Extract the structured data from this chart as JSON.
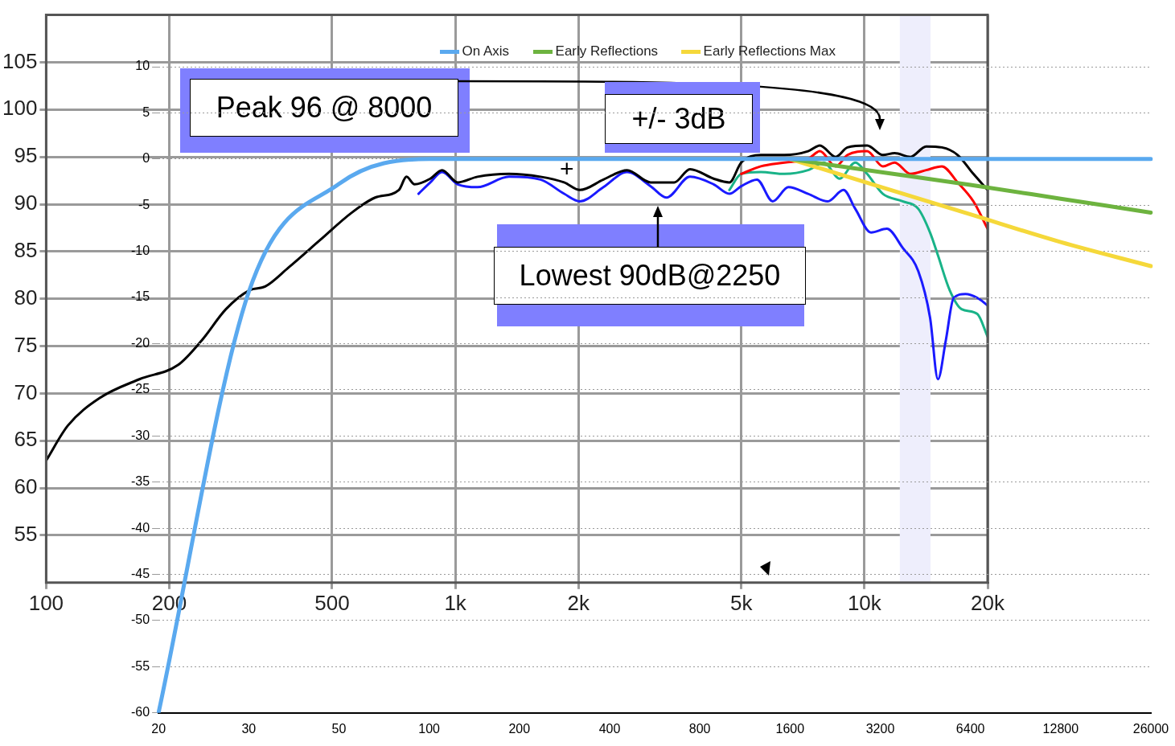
{
  "chart_data": [
    {
      "type": "line",
      "xlim": [
        100,
        20000
      ],
      "xticks": [
        100,
        200,
        500,
        {
          "value": 1000,
          "label": "1k"
        },
        {
          "value": 2000,
          "label": "2k"
        },
        {
          "value": 5000,
          "label": "5k"
        },
        {
          "value": 10000,
          "label": "10k"
        },
        {
          "value": 20000,
          "label": "20k"
        }
      ],
      "ylim": [
        50,
        110
      ],
      "yticks": [
        55,
        60,
        65,
        70,
        75,
        80,
        85,
        90,
        95,
        100,
        105
      ],
      "log": "x",
      "grid": true,
      "marker": "none",
      "bands": [
        {
          "axis": "x",
          "from": 12200,
          "to": 14500,
          "color": "#eeeefc"
        }
      ],
      "annotations": [
        "Peak 96 @ 8000",
        "Lowest 90dB@2250",
        "+/- 3dB",
        "+"
      ],
      "series": [
        {
          "color": "#000000",
          "x": [
            100,
            113,
            135,
            169,
            210,
            240,
            275,
            314,
            343,
            391,
            467,
            558,
            637,
            728,
            760,
            795,
            869,
            928,
            1014,
            1133,
            1353,
            1615,
            1845,
            2016,
            2302,
            2629,
            3002,
            3429,
            3747,
            4279,
            4676,
            4998,
            5583,
            6376,
            7281,
            7783,
            8504,
            9088,
            10150,
            11092,
            11855,
            12955,
            14152,
            15463,
            16897,
            18463,
            20000
          ],
          "values": [
            62.9,
            66.6,
            69.5,
            71.5,
            73.0,
            75.6,
            78.9,
            80.9,
            81.3,
            83.3,
            86.2,
            89.1,
            90.7,
            91.5,
            92.9,
            92.1,
            92.7,
            93.6,
            92.3,
            92.9,
            93.2,
            92.9,
            92.3,
            91.5,
            92.6,
            93.6,
            92.3,
            92.3,
            93.7,
            92.7,
            92.3,
            94.4,
            95.2,
            95.2,
            95.6,
            96.2,
            95.0,
            96.0,
            96.2,
            95.2,
            95.4,
            95.0,
            96.1,
            96.0,
            95.2,
            93.2,
            91.5
          ]
        },
        {
          "color": "#ff0000",
          "x": [
            4998,
            5583,
            6376,
            7281,
            7783,
            8504,
            9088,
            10150,
            11092,
            11855,
            12955,
            14152,
            15463,
            16897,
            18463,
            20000
          ],
          "values": [
            93.2,
            94.0,
            94.4,
            94.8,
            95.6,
            94.0,
            95.2,
            95.6,
            94.0,
            94.4,
            93.2,
            93.6,
            94.0,
            92.3,
            90.3,
            87.4
          ]
        },
        {
          "color": "#1a1aff",
          "x": [
            813,
            869,
            928,
            1014,
            1133,
            1353,
            1615,
            1845,
            2016,
            2302,
            2629,
            3002,
            3281,
            3747,
            4279,
            4676,
            4998,
            5461,
            5967,
            6521,
            7281,
            8134,
            8886,
            9500,
            10380,
            11342,
            12395,
            13543,
            14468,
            15122,
            15808,
            16523,
            17660,
            18873,
            20000
          ],
          "values": [
            91.1,
            92.3,
            93.4,
            92.1,
            91.8,
            92.9,
            92.6,
            91.1,
            90.3,
            91.8,
            93.4,
            91.9,
            90.7,
            92.9,
            92.1,
            91.1,
            91.9,
            92.6,
            90.3,
            91.8,
            91.1,
            90.3,
            91.5,
            89.5,
            87.0,
            87.4,
            85.4,
            82.9,
            78.0,
            71.5,
            75.6,
            80.1,
            80.5,
            80.1,
            79.3
          ]
        },
        {
          "color": "#19b388",
          "x": [
            4676,
            4998,
            5583,
            6376,
            7281,
            7956,
            8695,
            9500,
            10150,
            11092,
            12395,
            13543,
            14468,
            15122,
            16159,
            17277,
            18873,
            20000
          ],
          "values": [
            91.5,
            93.2,
            93.4,
            93.2,
            93.6,
            94.4,
            92.7,
            94.4,
            93.2,
            91.1,
            90.3,
            89.5,
            87.0,
            84.6,
            80.9,
            78.9,
            78.4,
            76.0
          ]
        }
      ]
    },
    {
      "type": "line",
      "categories": [
        "20",
        "30",
        "50",
        "100",
        "200",
        "400",
        "800",
        "1600",
        "3200",
        "6400",
        "12800",
        "26000"
      ],
      "ylim": [
        -60,
        10
      ],
      "yticks": [
        -60,
        -55,
        -50,
        -45,
        -40,
        -35,
        -30,
        -25,
        -20,
        -15,
        -10,
        -5,
        0,
        5,
        10
      ],
      "grid": "y",
      "legend": "top",
      "marker": "none",
      "series": [
        {
          "name": "On Axis",
          "color": "#5aa9ef",
          "values": [
            -60,
            -14.4,
            -2.7,
            0,
            0,
            0,
            0,
            0,
            0,
            0,
            0,
            0
          ]
        },
        {
          "name": "Early Reflections",
          "color": "#6db33f",
          "values": [
            null,
            null,
            null,
            null,
            null,
            null,
            null,
            0,
            -1.4,
            -2.8,
            -4.3,
            -5.8
          ]
        },
        {
          "name": "Early Reflections Max",
          "color": "#f5d83a",
          "values": [
            null,
            null,
            null,
            null,
            null,
            null,
            null,
            0,
            -3,
            -6,
            -9,
            -11.6
          ]
        }
      ]
    }
  ]
}
